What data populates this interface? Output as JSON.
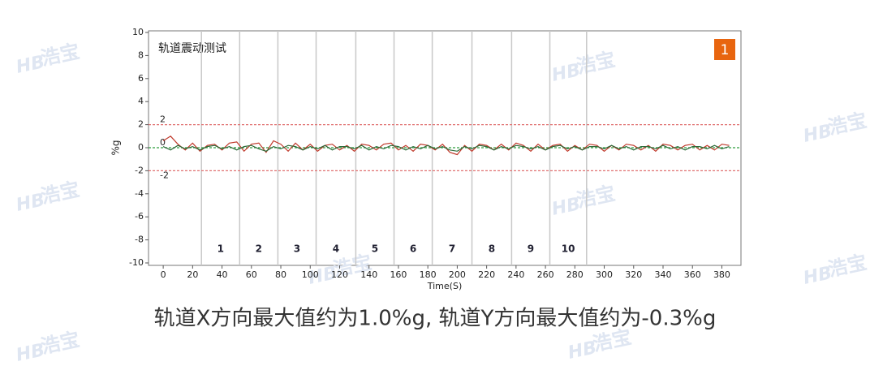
{
  "chart_data": {
    "type": "line",
    "panel_title": "轨道震动测试",
    "badge": "1",
    "xlabel": "Time(S)",
    "ylabel": "%g",
    "caption": "轨道X方向最大值约为1.0%g, 轨道Y方向最大值约为-0.3%g",
    "watermark": "浩宝",
    "watermark_logo": "HB",
    "xlim": [
      -10,
      393
    ],
    "ylim": [
      -10,
      10
    ],
    "xticks": [
      0,
      20,
      40,
      60,
      80,
      100,
      120,
      140,
      160,
      180,
      200,
      220,
      240,
      260,
      280,
      300,
      320,
      340,
      360,
      380
    ],
    "yticks": [
      -10,
      -8,
      -6,
      -4,
      -2,
      0,
      2,
      4,
      6,
      8,
      10
    ],
    "segment_bounds": [
      26,
      52,
      78,
      104,
      131,
      157,
      183,
      210,
      237,
      263,
      288
    ],
    "segment_labels": [
      "1",
      "2",
      "3",
      "4",
      "5",
      "6",
      "7",
      "8",
      "9",
      "10"
    ],
    "reference_lines": [
      {
        "value": 2,
        "label": "2",
        "color": "#e07070"
      },
      {
        "value": 0,
        "label": "0",
        "color": "#2e9e3e"
      },
      {
        "value": -2,
        "label": "-2",
        "color": "#e07070"
      }
    ],
    "x": [
      0,
      5,
      10,
      15,
      20,
      25,
      30,
      35,
      40,
      45,
      50,
      55,
      60,
      65,
      70,
      75,
      80,
      85,
      90,
      95,
      100,
      105,
      110,
      115,
      120,
      125,
      130,
      135,
      140,
      145,
      150,
      155,
      160,
      165,
      170,
      175,
      180,
      185,
      190,
      195,
      200,
      205,
      210,
      215,
      220,
      225,
      230,
      235,
      240,
      245,
      250,
      255,
      260,
      265,
      270,
      275,
      280,
      285,
      290,
      295,
      300,
      305,
      310,
      315,
      320,
      325,
      330,
      335,
      340,
      345,
      350,
      355,
      360,
      365,
      370,
      375,
      380,
      385
    ],
    "series": [
      {
        "color": "#c0392b",
        "values": [
          0.6,
          1.0,
          0.3,
          -0.2,
          0.4,
          -0.3,
          0.2,
          0.3,
          -0.2,
          0.4,
          0.5,
          -0.3,
          0.3,
          0.4,
          -0.4,
          0.6,
          0.3,
          -0.3,
          0.4,
          -0.2,
          0.3,
          -0.3,
          0.2,
          0.3,
          -0.2,
          0.2,
          -0.3,
          0.3,
          0.2,
          -0.2,
          0.3,
          0.4,
          -0.2,
          0.2,
          -0.3,
          0.3,
          0.2,
          -0.2,
          0.3,
          -0.4,
          -0.6,
          0.2,
          -0.3,
          0.3,
          0.2,
          -0.2,
          0.3,
          -0.2,
          0.4,
          0.2,
          -0.3,
          0.3,
          -0.2,
          0.2,
          0.3,
          -0.3,
          0.2,
          -0.2,
          0.3,
          0.2,
          -0.3,
          0.2,
          -0.2,
          0.3,
          0.2,
          -0.2,
          0.2,
          -0.3,
          0.3,
          0.2,
          -0.2,
          0.2,
          0.3,
          -0.2,
          0.2,
          -0.2,
          0.3,
          0.2
        ]
      },
      {
        "color": "#2e6b3a",
        "values": [
          0.1,
          -0.2,
          0.2,
          -0.1,
          0.1,
          -0.2,
          0.1,
          0.2,
          -0.1,
          0.1,
          -0.2,
          0.1,
          0.2,
          -0.1,
          -0.3,
          0.1,
          -0.1,
          0.2,
          0.1,
          -0.2,
          0.1,
          -0.1,
          0.2,
          -0.2,
          0.1,
          0.1,
          -0.1,
          0.2,
          -0.2,
          0.1,
          -0.1,
          0.2,
          0.1,
          -0.2,
          0.1,
          -0.1,
          0.2,
          -0.1,
          0.1,
          -0.2,
          -0.3,
          0.1,
          -0.1,
          0.2,
          0.1,
          -0.2,
          0.1,
          -0.1,
          0.2,
          0.1,
          -0.1,
          0.1,
          -0.2,
          0.1,
          0.2,
          -0.1,
          0.1,
          -0.2,
          0.1,
          0.1,
          -0.1,
          0.2,
          -0.1,
          0.1,
          -0.2,
          0.1,
          0.1,
          -0.1,
          0.2,
          -0.1,
          0.1,
          -0.2,
          0.1,
          0.1,
          -0.1,
          0.2,
          -0.1,
          0.1
        ]
      }
    ]
  }
}
